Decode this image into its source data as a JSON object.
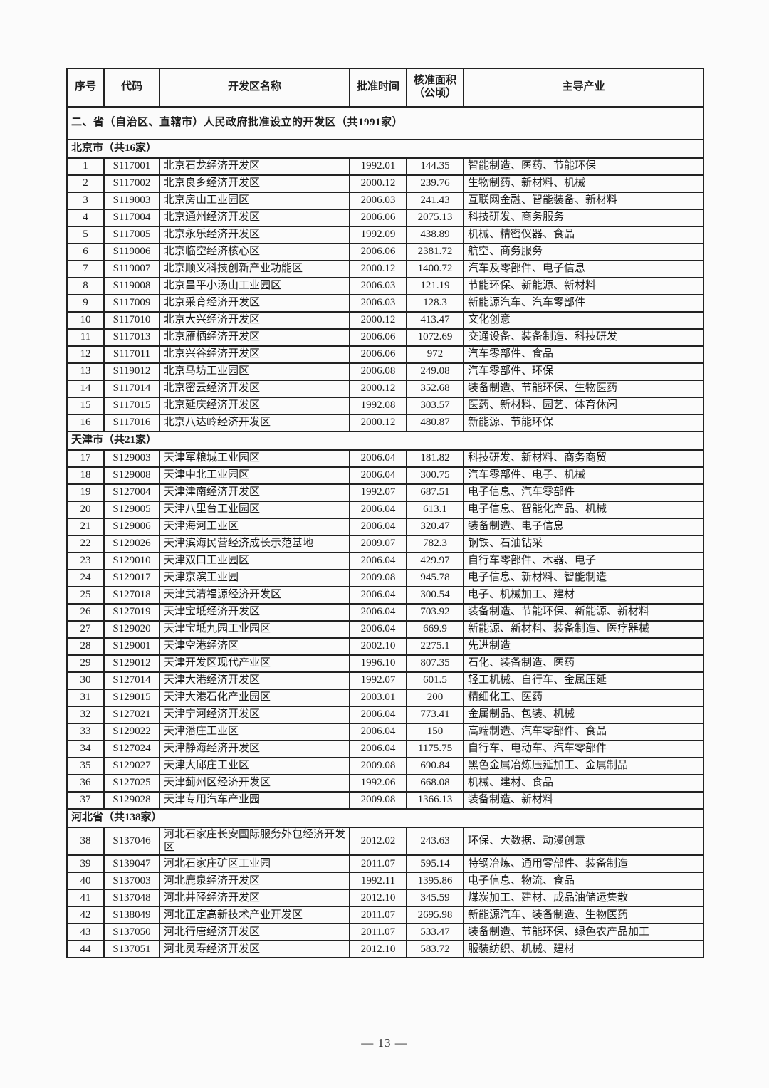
{
  "page": {
    "number": "— 13 —"
  },
  "table": {
    "headers": [
      "序号",
      "代码",
      "开发区名称",
      "批准时间",
      "核准面积\n（公顷）",
      "主导产业"
    ],
    "section_title": "二、省（自治区、直辖市）人民政府批准设立的开发区（共1991家）",
    "groups": [
      {
        "name": "北京市（共16家）",
        "rows": [
          [
            "1",
            "S117001",
            "北京石龙经济开发区",
            "1992.01",
            "144.35",
            "智能制造、医药、节能环保"
          ],
          [
            "2",
            "S117002",
            "北京良乡经济开发区",
            "2000.12",
            "239.76",
            "生物制药、新材料、机械"
          ],
          [
            "3",
            "S119003",
            "北京房山工业园区",
            "2006.03",
            "241.43",
            "互联网金融、智能装备、新材料"
          ],
          [
            "4",
            "S117004",
            "北京通州经济开发区",
            "2006.06",
            "2075.13",
            "科技研发、商务服务"
          ],
          [
            "5",
            "S117005",
            "北京永乐经济开发区",
            "1992.09",
            "438.89",
            "机械、精密仪器、食品"
          ],
          [
            "6",
            "S119006",
            "北京临空经济核心区",
            "2006.06",
            "2381.72",
            "航空、商务服务"
          ],
          [
            "7",
            "S119007",
            "北京顺义科技创新产业功能区",
            "2000.12",
            "1400.72",
            "汽车及零部件、电子信息"
          ],
          [
            "8",
            "S119008",
            "北京昌平小汤山工业园区",
            "2006.03",
            "121.19",
            "节能环保、新能源、新材料"
          ],
          [
            "9",
            "S117009",
            "北京采育经济开发区",
            "2006.03",
            "128.3",
            "新能源汽车、汽车零部件"
          ],
          [
            "10",
            "S117010",
            "北京大兴经济开发区",
            "2000.12",
            "413.47",
            "文化创意"
          ],
          [
            "11",
            "S117013",
            "北京雁栖经济开发区",
            "2006.06",
            "1072.69",
            "交通设备、装备制造、科技研发"
          ],
          [
            "12",
            "S117011",
            "北京兴谷经济开发区",
            "2006.06",
            "972",
            "汽车零部件、食品"
          ],
          [
            "13",
            "S119012",
            "北京马坊工业园区",
            "2006.08",
            "249.08",
            "汽车零部件、环保"
          ],
          [
            "14",
            "S117014",
            "北京密云经济开发区",
            "2000.12",
            "352.68",
            "装备制造、节能环保、生物医药"
          ],
          [
            "15",
            "S117015",
            "北京延庆经济开发区",
            "1992.08",
            "303.57",
            "医药、新材料、园艺、体育休闲"
          ],
          [
            "16",
            "S117016",
            "北京八达岭经济开发区",
            "2000.12",
            "480.87",
            "新能源、节能环保"
          ]
        ]
      },
      {
        "name": "天津市（共21家）",
        "rows": [
          [
            "17",
            "S129003",
            "天津军粮城工业园区",
            "2006.04",
            "181.82",
            "科技研发、新材料、商务商贸"
          ],
          [
            "18",
            "S129008",
            "天津中北工业园区",
            "2006.04",
            "300.75",
            "汽车零部件、电子、机械"
          ],
          [
            "19",
            "S127004",
            "天津津南经济开发区",
            "1992.07",
            "687.51",
            "电子信息、汽车零部件"
          ],
          [
            "20",
            "S129005",
            "天津八里台工业园区",
            "2006.04",
            "613.1",
            "电子信息、智能化产品、机械"
          ],
          [
            "21",
            "S129006",
            "天津海河工业区",
            "2006.04",
            "320.47",
            "装备制造、电子信息"
          ],
          [
            "22",
            "S129026",
            "天津滨海民营经济成长示范基地",
            "2009.07",
            "782.3",
            "钢铁、石油钻采"
          ],
          [
            "23",
            "S129010",
            "天津双口工业园区",
            "2006.04",
            "429.97",
            "自行车零部件、木器、电子"
          ],
          [
            "24",
            "S129017",
            "天津京滨工业园",
            "2009.08",
            "945.78",
            "电子信息、新材料、智能制造"
          ],
          [
            "25",
            "S127018",
            "天津武清福源经济开发区",
            "2006.04",
            "300.54",
            "电子、机械加工、建材"
          ],
          [
            "26",
            "S127019",
            "天津宝坻经济开发区",
            "2006.04",
            "703.92",
            "装备制造、节能环保、新能源、新材料"
          ],
          [
            "27",
            "S129020",
            "天津宝坻九园工业园区",
            "2006.04",
            "669.9",
            "新能源、新材料、装备制造、医疗器械"
          ],
          [
            "28",
            "S129001",
            "天津空港经济区",
            "2002.10",
            "2275.1",
            "先进制造"
          ],
          [
            "29",
            "S129012",
            "天津开发区现代产业区",
            "1996.10",
            "807.35",
            "石化、装备制造、医药"
          ],
          [
            "30",
            "S127014",
            "天津大港经济开发区",
            "1992.07",
            "601.5",
            "轻工机械、自行车、金属压延"
          ],
          [
            "31",
            "S129015",
            "天津大港石化产业园区",
            "2003.01",
            "200",
            "精细化工、医药"
          ],
          [
            "32",
            "S127021",
            "天津宁河经济开发区",
            "2006.04",
            "773.41",
            "金属制品、包装、机械"
          ],
          [
            "33",
            "S129022",
            "天津潘庄工业区",
            "2006.04",
            "150",
            "高端制造、汽车零部件、食品"
          ],
          [
            "34",
            "S127024",
            "天津静海经济开发区",
            "2006.04",
            "1175.75",
            "自行车、电动车、汽车零部件"
          ],
          [
            "35",
            "S129027",
            "天津大邱庄工业区",
            "2009.08",
            "690.84",
            "黑色金属冶炼压延加工、金属制品"
          ],
          [
            "36",
            "S127025",
            "天津蓟州区经济开发区",
            "1992.06",
            "668.08",
            "机械、建材、食品"
          ],
          [
            "37",
            "S129028",
            "天津专用汽车产业园",
            "2009.08",
            "1366.13",
            "装备制造、新材料"
          ]
        ]
      },
      {
        "name": "河北省（共138家）",
        "rows": [
          [
            "38",
            "S137046",
            "河北石家庄长安国际服务外包经济开发区",
            "2012.02",
            "243.63",
            "环保、大数据、动漫创意"
          ],
          [
            "39",
            "S139047",
            "河北石家庄矿区工业园",
            "2011.07",
            "595.14",
            "特钢冶炼、通用零部件、装备制造"
          ],
          [
            "40",
            "S137003",
            "河北鹿泉经济开发区",
            "1992.11",
            "1395.86",
            "电子信息、物流、食品"
          ],
          [
            "41",
            "S137048",
            "河北井陉经济开发区",
            "2012.10",
            "345.59",
            "煤炭加工、建材、成品油储运集散"
          ],
          [
            "42",
            "S138049",
            "河北正定高新技术产业开发区",
            "2011.07",
            "2695.98",
            "新能源汽车、装备制造、生物医药"
          ],
          [
            "43",
            "S137050",
            "河北行唐经济开发区",
            "2011.07",
            "533.47",
            "装备制造、节能环保、绿色农产品加工"
          ],
          [
            "44",
            "S137051",
            "河北灵寿经济开发区",
            "2012.10",
            "583.72",
            "服装纺织、机械、建材"
          ]
        ]
      }
    ]
  }
}
